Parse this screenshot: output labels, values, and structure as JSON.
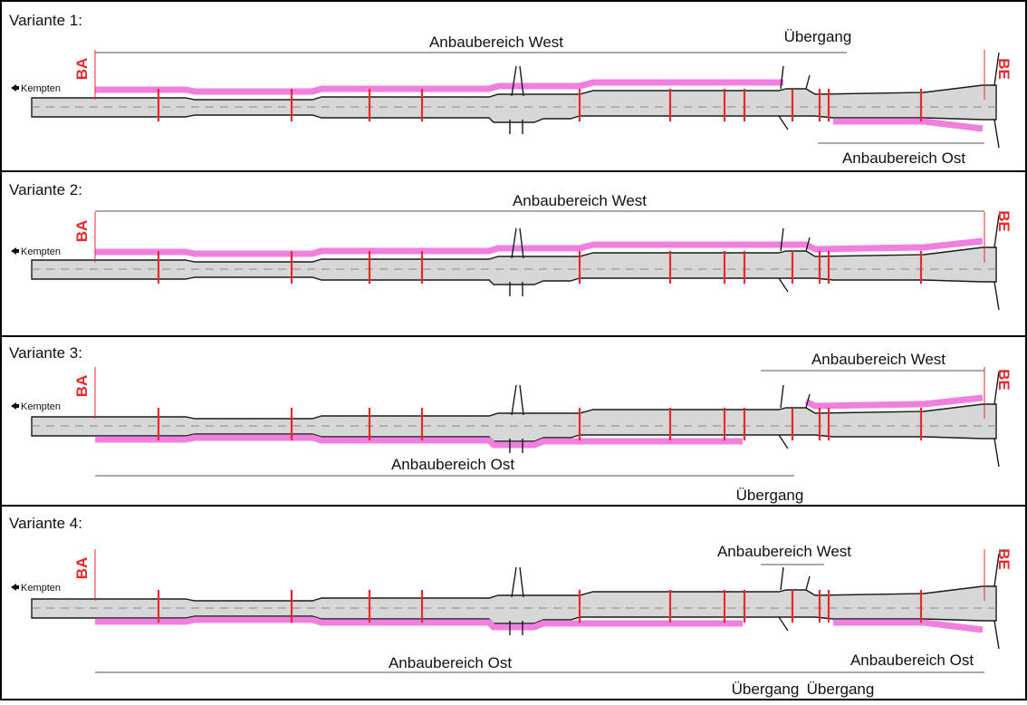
{
  "colors": {
    "road_fill": "#d7d7d7",
    "road_edge": "#1a1a1a",
    "centerline": "#8a8a8a",
    "widening": "#f07fe0",
    "station_mark": "#e8282b",
    "dimension_line": "#555555"
  },
  "panels": [
    {
      "title": "Variante 1:",
      "start_marker": "BA",
      "end_marker": "BE",
      "direction_label": "Kempten",
      "annotations": [
        {
          "label": "Anbaubereich West"
        },
        {
          "label": "Übergang"
        },
        {
          "label": "Anbaubereich Ost"
        }
      ]
    },
    {
      "title": "Variante 2:",
      "start_marker": "BA",
      "end_marker": "BE",
      "direction_label": "Kempten",
      "annotations": [
        {
          "label": "Anbaubereich West"
        }
      ]
    },
    {
      "title": "Variante 3:",
      "start_marker": "BA",
      "end_marker": "BE",
      "direction_label": "Kempten",
      "annotations": [
        {
          "label": "Anbaubereich West"
        },
        {
          "label": "Anbaubereich Ost"
        },
        {
          "label": "Übergang"
        }
      ]
    },
    {
      "title": "Variante 4:",
      "start_marker": "BA",
      "end_marker": "BE",
      "direction_label": "Kempten",
      "annotations": [
        {
          "label": "Anbaubereich West"
        },
        {
          "label": "Anbaubereich Ost"
        },
        {
          "label": "Anbaubereich Ost"
        },
        {
          "label": "Übergang"
        },
        {
          "label": "Übergang"
        }
      ]
    }
  ]
}
